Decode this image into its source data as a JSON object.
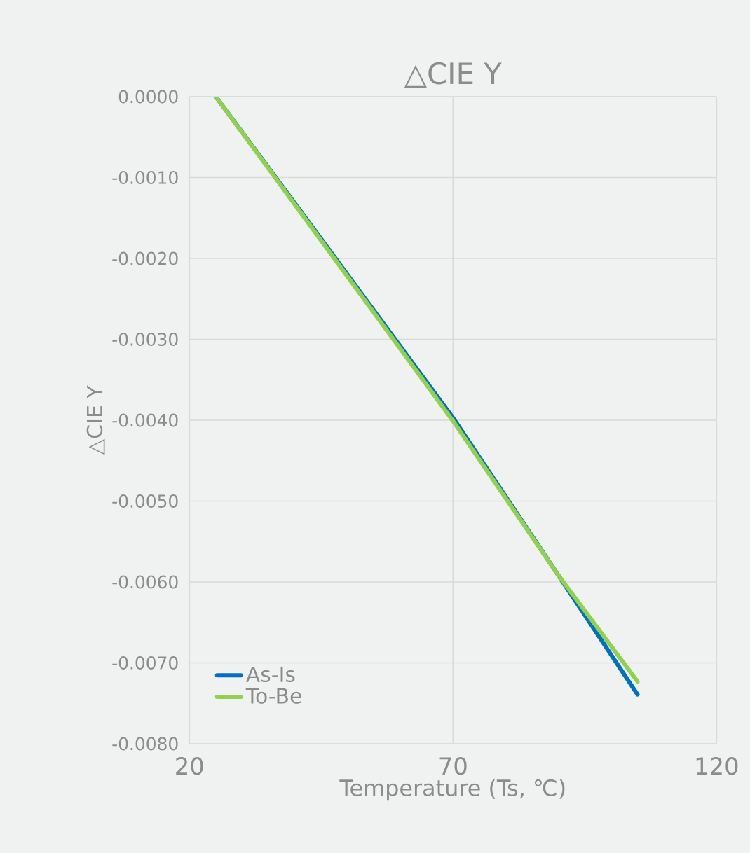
{
  "chart_data": {
    "type": "line",
    "title": "△CIE Y",
    "xlabel": "Temperature (Ts, ℃)",
    "ylabel": "△CIE Y",
    "xlim": [
      20,
      120
    ],
    "xticks": [
      20,
      70,
      120
    ],
    "ylim": [
      -0.008,
      0
    ],
    "yticks": [
      {
        "value": -0.008,
        "label": "-0.0080"
      },
      {
        "value": -0.007,
        "label": "-0.0070"
      },
      {
        "value": -0.006,
        "label": "-0.0060"
      },
      {
        "value": -0.005,
        "label": "-0.0050"
      },
      {
        "value": -0.004,
        "label": "-0.0040"
      },
      {
        "value": -0.003,
        "label": "-0.0030"
      },
      {
        "value": -0.002,
        "label": "-0.0020"
      },
      {
        "value": -0.001,
        "label": "-0.0010"
      },
      {
        "value": 0,
        "label": "0.0000"
      }
    ],
    "grid": true,
    "legend": "bottom left",
    "marker": "none",
    "line_style": "solid",
    "series": [
      {
        "name": "As-Is",
        "color": "#0070c0",
        "x": [
          25,
          45,
          70,
          90,
          105
        ],
        "values": [
          0,
          -0.00176,
          -0.00397,
          -0.00592,
          -0.00739
        ]
      },
      {
        "name": "To-Be",
        "color": "#92d050",
        "x": [
          25,
          45,
          70,
          90,
          105
        ],
        "values": [
          0,
          -0.00178,
          -0.00401,
          -0.00592,
          -0.00723
        ]
      }
    ]
  }
}
